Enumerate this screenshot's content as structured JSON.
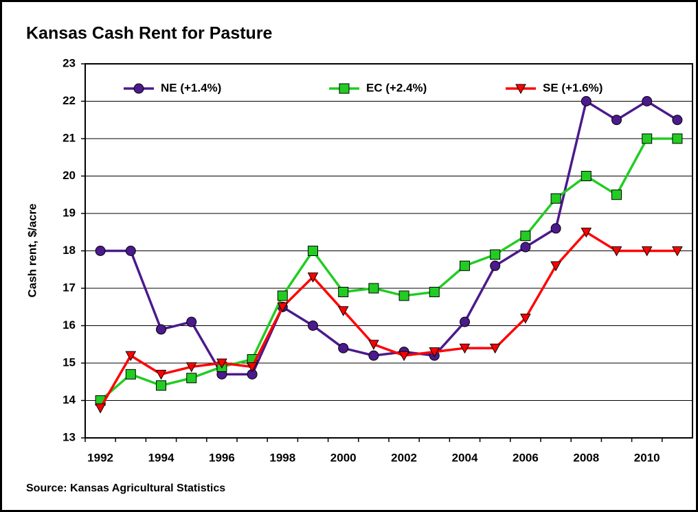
{
  "chart_data": {
    "type": "line",
    "title": "Kansas Cash Rent for Pasture",
    "y_label": "Cash rent, $/acre",
    "source": "Source:  Kansas Agricultural Statistics",
    "categories": [
      "1992",
      null,
      "1994",
      null,
      "1996",
      null,
      "1998",
      null,
      "2000",
      null,
      "2002",
      null,
      "2004",
      null,
      "2006",
      null,
      "2008",
      null,
      "2010",
      null
    ],
    "series": [
      {
        "name": "NE (+1.4%)",
        "color": "#4b1a8c",
        "marker": "circle",
        "values": [
          18,
          18,
          15.9,
          16.1,
          14.7,
          14.7,
          16.5,
          16.0,
          15.4,
          15.2,
          15.3,
          15.2,
          16.1,
          17.6,
          18.1,
          18.6,
          22.0,
          21.5,
          22.0,
          21.5
        ]
      },
      {
        "name": "EC (+2.4%)",
        "color": "#22cc22",
        "marker": "square",
        "values": [
          14.0,
          14.7,
          14.4,
          14.6,
          14.9,
          15.1,
          16.8,
          18.0,
          16.9,
          17.0,
          16.8,
          16.9,
          17.6,
          17.9,
          18.4,
          19.4,
          20.0,
          19.5,
          21.0,
          21.0
        ]
      },
      {
        "name": "SE (+1.6%)",
        "color": "#ff0000",
        "marker": "triangle-down",
        "values": [
          13.8,
          15.2,
          14.7,
          14.9,
          15.0,
          14.9,
          16.5,
          17.3,
          16.4,
          15.5,
          15.2,
          15.3,
          15.4,
          15.4,
          16.2,
          17.6,
          18.5,
          18.0,
          18.0,
          18.0
        ]
      }
    ],
    "ylim": [
      13,
      23
    ],
    "yticks": [
      13,
      14,
      15,
      16,
      17,
      18,
      19,
      20,
      21,
      22,
      23
    ],
    "grid": true,
    "legend": "top-left"
  }
}
